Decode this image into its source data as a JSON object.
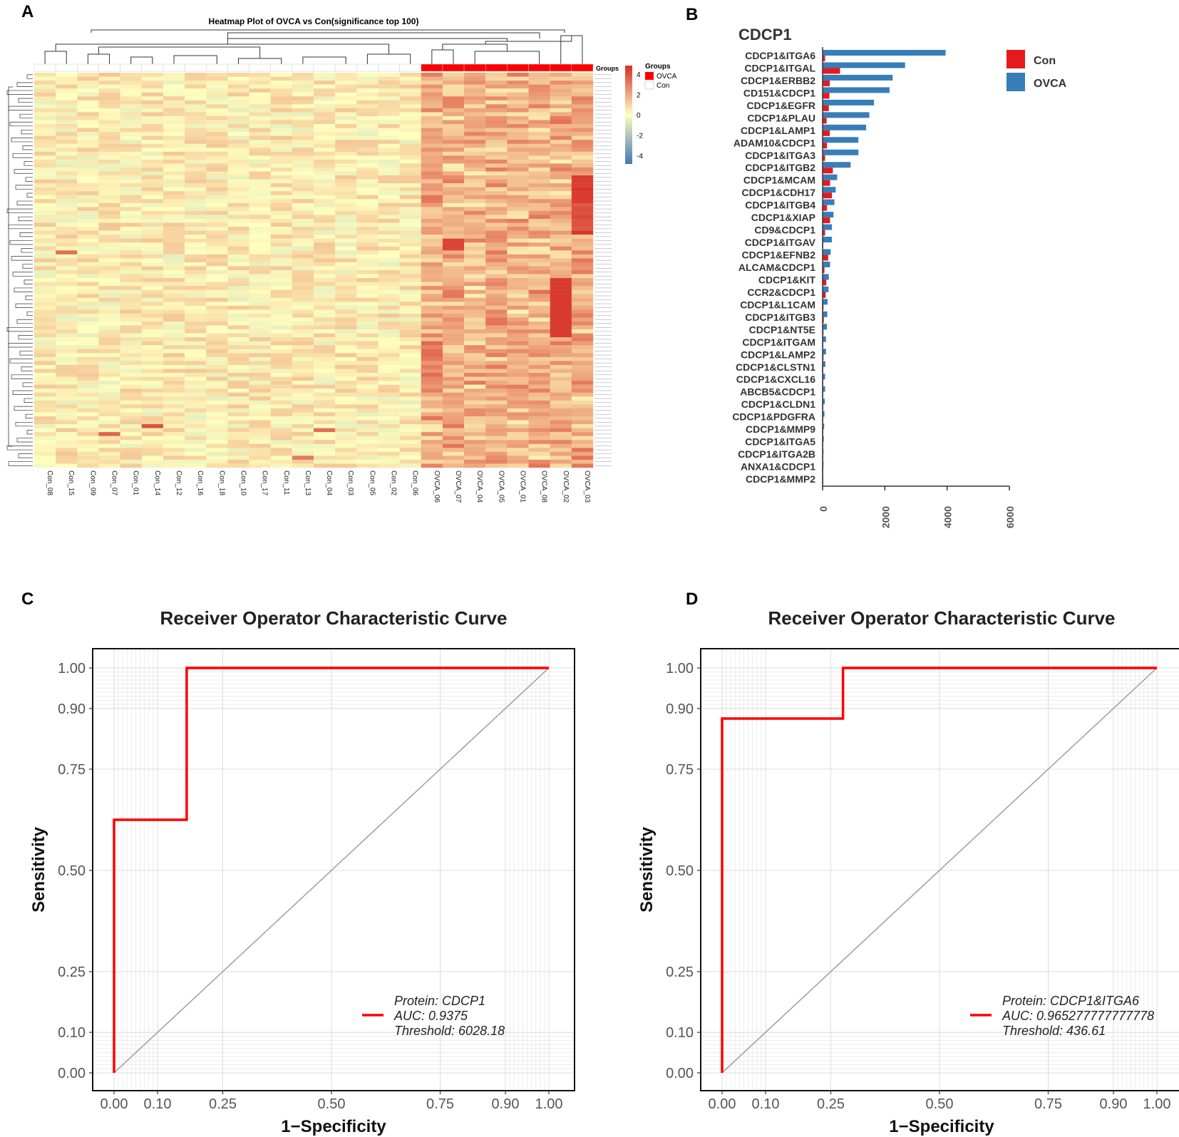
{
  "panels": {
    "a": "A",
    "b": "B",
    "c": "C",
    "d": "D"
  },
  "colors": {
    "con": "#e41a1c",
    "ovca": "#377eb8",
    "roc": "#ff0000",
    "diag": "#9e9e9e"
  },
  "chart_data": [
    {
      "id": "heatmap",
      "type": "heatmap",
      "title": "Heatmap Plot of OVCA vs Con(significance top 100)",
      "columns": [
        "Con_08",
        "Con_15",
        "Con_09",
        "Con_07",
        "Con_01",
        "Con_14",
        "Con_12",
        "Con_16",
        "Con_18",
        "Con_10",
        "Con_17",
        "Con_11",
        "Con_13",
        "Con_04",
        "Con_03",
        "Con_05",
        "Con_02",
        "Con_06",
        "OVCA_06",
        "OVCA_07",
        "OVCA_04",
        "OVCA_05",
        "OVCA_01",
        "OVCA_08",
        "OVCA_02",
        "OVCA_03"
      ],
      "groups": [
        "Con",
        "Con",
        "Con",
        "Con",
        "Con",
        "Con",
        "Con",
        "Con",
        "Con",
        "Con",
        "Con",
        "Con",
        "Con",
        "Con",
        "Con",
        "Con",
        "Con",
        "Con",
        "OVCA",
        "OVCA",
        "OVCA",
        "OVCA",
        "OVCA",
        "OVCA",
        "OVCA",
        "OVCA"
      ],
      "group_legend_title": "Groups",
      "group_legend": [
        "OVCA",
        "Con"
      ],
      "group_row_label": "Groups",
      "color_scale": {
        "min": -4,
        "max": 4,
        "ticks": [
          4,
          2,
          0,
          -2,
          -4
        ],
        "low": "#4575b4",
        "mid": "#ffffbf",
        "high": "#d73027"
      },
      "n_rows": 100
    },
    {
      "id": "bars",
      "type": "bar",
      "orientation": "horizontal",
      "title": "CDCP1",
      "categories": [
        "CDCP1&ITGA6",
        "CDCP1&ITGAL",
        "CDCP1&ERBB2",
        "CD151&CDCP1",
        "CDCP1&EGFR",
        "CDCP1&PLAU",
        "CDCP1&LAMP1",
        "ADAM10&CDCP1",
        "CDCP1&ITGA3",
        "CDCP1&ITGB2",
        "CDCP1&MCAM",
        "CDCP1&CDH17",
        "CDCP1&ITGB4",
        "CDCP1&XIAP",
        "CD9&CDCP1",
        "CDCP1&ITGAV",
        "CDCP1&EFNB2",
        "ALCAM&CDCP1",
        "CDCP1&KIT",
        "CCR2&CDCP1",
        "CDCP1&L1CAM",
        "CDCP1&ITGB3",
        "CDCP1&NT5E",
        "CDCP1&ITGAM",
        "CDCP1&LAMP2",
        "CDCP1&CLSTN1",
        "CDCP1&CXCL16",
        "ABCB5&CDCP1",
        "CDCP1&CLDN1",
        "CDCP1&PDGFRA",
        "CDCP1&MMP9",
        "CDCP1&ITGA5",
        "CDCP1&ITGA2B",
        "ANXA1&CDCP1",
        "CDCP1&MMP2"
      ],
      "series": [
        {
          "name": "Con",
          "values": [
            80,
            560,
            230,
            220,
            200,
            130,
            230,
            140,
            80,
            330,
            240,
            300,
            140,
            240,
            80,
            20,
            180,
            60,
            120,
            100,
            30,
            40,
            30,
            20,
            30,
            20,
            20,
            20,
            20,
            20,
            20,
            20,
            10,
            10,
            10
          ]
        },
        {
          "name": "OVCA",
          "values": [
            3950,
            2650,
            2250,
            2150,
            1650,
            1500,
            1400,
            1150,
            1150,
            900,
            470,
            420,
            380,
            350,
            300,
            300,
            260,
            240,
            200,
            190,
            160,
            150,
            140,
            110,
            110,
            90,
            80,
            80,
            70,
            60,
            50,
            40,
            30,
            30,
            20
          ]
        }
      ],
      "xlim": [
        0,
        6000
      ],
      "xticks": [
        "0",
        "2000",
        "4000",
        "6000"
      ]
    },
    {
      "id": "roc_c",
      "type": "line",
      "title": "Receiver Operator Characteristic Curve",
      "xlabel": "1−Specificity",
      "ylabel": "Sensitivity",
      "xlim": [
        0,
        1
      ],
      "ylim": [
        0,
        1
      ],
      "xticks": [
        "0.00",
        "0.10",
        "0.25",
        "0.50",
        "0.75",
        "0.90",
        "1.00"
      ],
      "yticks": [
        "0.00",
        "0.10",
        "0.25",
        "0.50",
        "0.75",
        "0.90",
        "1.00"
      ],
      "curve": [
        [
          0,
          0
        ],
        [
          0,
          0.625
        ],
        [
          0.167,
          0.625
        ],
        [
          0.167,
          1.0
        ],
        [
          1.0,
          1.0
        ]
      ],
      "legend": [
        "Protein: CDCP1",
        "AUC: 0.9375",
        "Threshold: 6028.18"
      ]
    },
    {
      "id": "roc_d",
      "type": "line",
      "title": "Receiver Operator Characteristic Curve",
      "xlabel": "1−Specificity",
      "ylabel": "Sensitivity",
      "xlim": [
        0,
        1
      ],
      "ylim": [
        0,
        1
      ],
      "xticks": [
        "0.00",
        "0.10",
        "0.25",
        "0.50",
        "0.75",
        "0.90",
        "1.00"
      ],
      "yticks": [
        "0.00",
        "0.10",
        "0.25",
        "0.50",
        "0.75",
        "0.90",
        "1.00"
      ],
      "curve": [
        [
          0,
          0
        ],
        [
          0,
          0.875
        ],
        [
          0.278,
          0.875
        ],
        [
          0.278,
          1.0
        ],
        [
          1.0,
          1.0
        ]
      ],
      "legend": [
        "Protein: CDCP1&ITGA6",
        "AUC: 0.965277777777778",
        "Threshold: 436.61"
      ]
    }
  ]
}
